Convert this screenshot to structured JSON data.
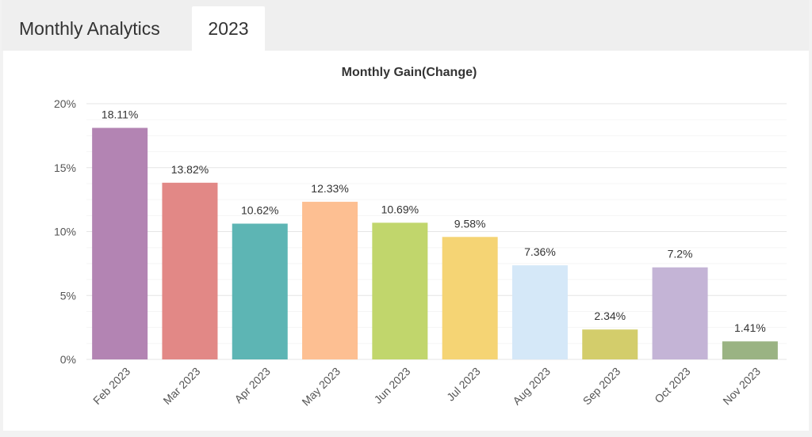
{
  "tabs": [
    {
      "label": "Monthly Analytics"
    },
    {
      "label": "2023"
    }
  ],
  "chart_data": {
    "type": "bar",
    "title": "Monthly Gain(Change)",
    "xlabel": "",
    "ylabel": "",
    "categories": [
      "Feb 2023",
      "Mar 2023",
      "Apr 2023",
      "May 2023",
      "Jun 2023",
      "Jul 2023",
      "Aug 2023",
      "Sep 2023",
      "Oct 2023",
      "Nov 2023"
    ],
    "values": [
      18.11,
      13.82,
      10.62,
      12.33,
      10.69,
      9.58,
      7.36,
      2.34,
      7.2,
      1.41
    ],
    "value_labels": [
      "18.11%",
      "13.82%",
      "10.62%",
      "12.33%",
      "10.69%",
      "9.58%",
      "7.36%",
      "2.34%",
      "7.2%",
      "1.41%"
    ],
    "colors": [
      "#b384b3",
      "#e28886",
      "#5db5b4",
      "#fdbf92",
      "#c1d66c",
      "#f5d474",
      "#d5e8f8",
      "#d3cd6b",
      "#c4b4d6",
      "#9ab383"
    ],
    "ylim": [
      0,
      20
    ],
    "yticks": [
      0,
      5,
      10,
      15,
      20
    ],
    "ytick_labels": [
      "0%",
      "5%",
      "10%",
      "15%",
      "20%"
    ],
    "grid": true,
    "legend": "none"
  }
}
